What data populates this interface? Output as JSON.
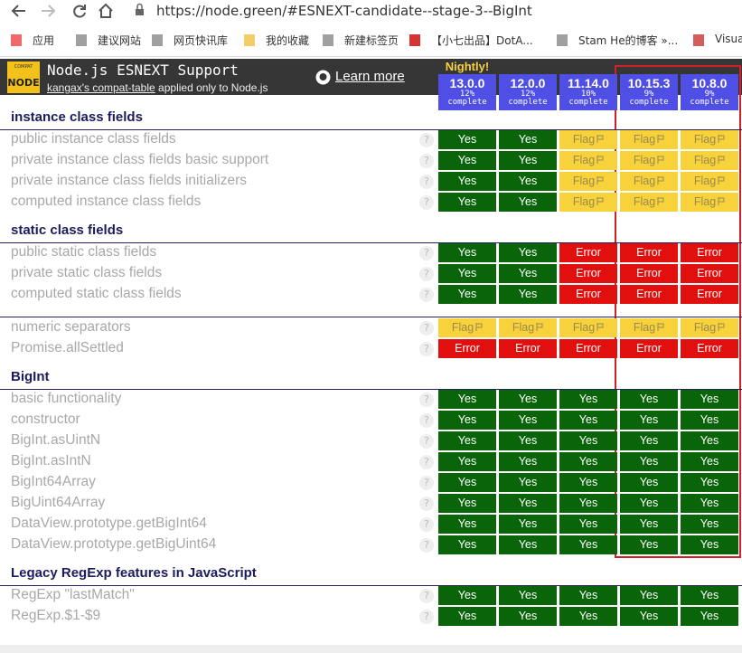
{
  "browser": {
    "url": "https://node.green/#ESNEXT-candidate--stage-3--BigInt",
    "bookmarks": [
      "应用",
      "建议网站",
      "网页快讯库",
      "我的收藏",
      "新建标签页",
      "【小七出品】DotA...",
      "Stam He的博客 »...",
      "Visual"
    ]
  },
  "header": {
    "logo_top": "COMPAT",
    "logo_bottom": "NODE",
    "title": "Node.js ESNEXT Support",
    "subtitle_link": "kangax's compat-table",
    "subtitle_rest": "applied only to Node.js",
    "learn_more": "Learn more",
    "nightly": "Nightly!"
  },
  "versions": [
    {
      "name": "13.0.0",
      "percent": "12%",
      "status": "complete"
    },
    {
      "name": "12.0.0",
      "percent": "12%",
      "status": "complete"
    },
    {
      "name": "11.14.0",
      "percent": "10%",
      "status": "complete"
    },
    {
      "name": "10.15.3",
      "percent": "9%",
      "status": "complete"
    },
    {
      "name": "10.8.0",
      "percent": "9%",
      "status": "complete"
    }
  ],
  "help": "?",
  "sections": [
    {
      "title": "instance class fields",
      "rows": [
        {
          "name": "public instance class fields",
          "results": [
            "Yes",
            "Yes",
            "Flag",
            "Flag",
            "Flag"
          ]
        },
        {
          "name": "private instance class fields basic support",
          "results": [
            "Yes",
            "Yes",
            "Flag",
            "Flag",
            "Flag"
          ]
        },
        {
          "name": "private instance class fields initializers",
          "results": [
            "Yes",
            "Yes",
            "Flag",
            "Flag",
            "Flag"
          ]
        },
        {
          "name": "computed instance class fields",
          "results": [
            "Yes",
            "Yes",
            "Flag",
            "Flag",
            "Flag"
          ]
        }
      ]
    },
    {
      "title": "static class fields",
      "rows": [
        {
          "name": "public static class fields",
          "results": [
            "Yes",
            "Yes",
            "Error",
            "Error",
            "Error"
          ]
        },
        {
          "name": "private static class fields",
          "results": [
            "Yes",
            "Yes",
            "Error",
            "Error",
            "Error"
          ]
        },
        {
          "name": "computed static class fields",
          "results": [
            "Yes",
            "Yes",
            "Error",
            "Error",
            "Error"
          ]
        }
      ]
    },
    {
      "rows": [
        {
          "name": "numeric separators",
          "results": [
            "Flag",
            "Flag",
            "Flag",
            "Flag",
            "Flag"
          ]
        },
        {
          "name": "Promise.allSettled",
          "results": [
            "Error",
            "Error",
            "Error",
            "Error",
            "Error"
          ]
        }
      ]
    },
    {
      "title": "BigInt",
      "rows": [
        {
          "name": "basic functionality",
          "results": [
            "Yes",
            "Yes",
            "Yes",
            "Yes",
            "Yes"
          ]
        },
        {
          "name": "constructor",
          "results": [
            "Yes",
            "Yes",
            "Yes",
            "Yes",
            "Yes"
          ]
        },
        {
          "name": "BigInt.asUintN",
          "results": [
            "Yes",
            "Yes",
            "Yes",
            "Yes",
            "Yes"
          ]
        },
        {
          "name": "BigInt.asIntN",
          "results": [
            "Yes",
            "Yes",
            "Yes",
            "Yes",
            "Yes"
          ]
        },
        {
          "name": "BigInt64Array",
          "results": [
            "Yes",
            "Yes",
            "Yes",
            "Yes",
            "Yes"
          ]
        },
        {
          "name": "BigUint64Array",
          "results": [
            "Yes",
            "Yes",
            "Yes",
            "Yes",
            "Yes"
          ]
        },
        {
          "name": "DataView.prototype.getBigInt64",
          "results": [
            "Yes",
            "Yes",
            "Yes",
            "Yes",
            "Yes"
          ]
        },
        {
          "name": "DataView.prototype.getBigUint64",
          "results": [
            "Yes",
            "Yes",
            "Yes",
            "Yes",
            "Yes"
          ]
        }
      ]
    },
    {
      "title": "Legacy RegExp features in JavaScript",
      "rows": [
        {
          "name": "RegExp \"lastMatch\"",
          "results": [
            "Yes",
            "Yes",
            "Yes",
            "Yes",
            "Yes"
          ]
        },
        {
          "name": "RegExp.$1-$9",
          "results": [
            "Yes",
            "Yes",
            "Yes",
            "Yes",
            "Yes"
          ]
        }
      ]
    }
  ]
}
